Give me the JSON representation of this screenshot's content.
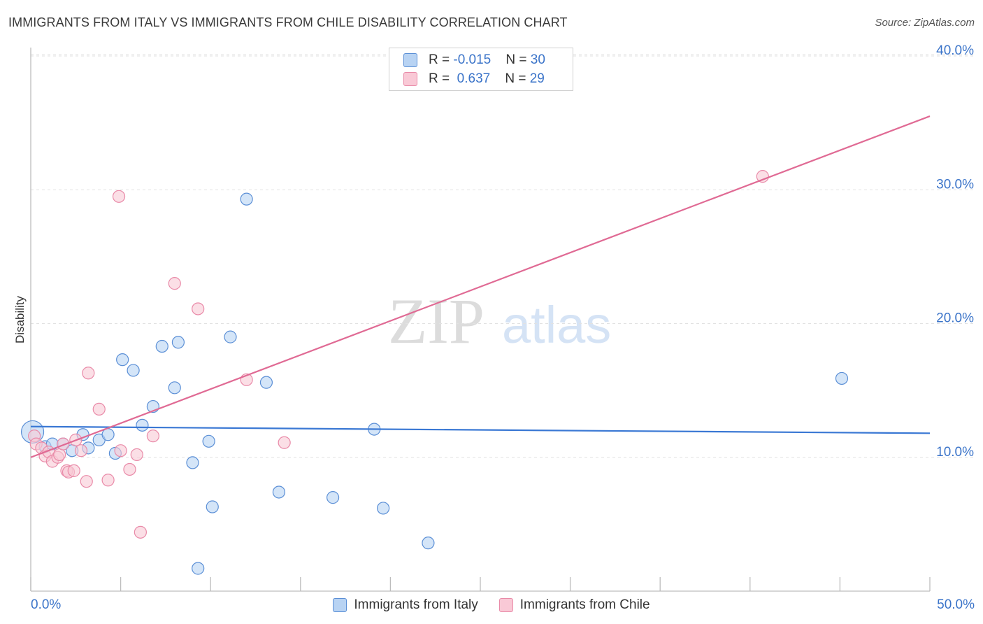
{
  "title": "IMMIGRANTS FROM ITALY VS IMMIGRANTS FROM CHILE DISABILITY CORRELATION CHART",
  "source": "Source: ZipAtlas.com",
  "watermark": {
    "zip": "ZIP",
    "atlas": "atlas"
  },
  "legend_stats": [
    {
      "r_label": "R = ",
      "r_value": "-0.015",
      "n_label": "N = ",
      "n_value": "30",
      "color": "#a8c8f0",
      "border": "#5b8fd6"
    },
    {
      "r_label": "R = ",
      "r_value": " 0.637",
      "n_label": "N = ",
      "n_value": "29",
      "color": "#f8c0d0",
      "border": "#e98aa8"
    }
  ],
  "legend_bottom": [
    {
      "label": "Immigrants from Italy",
      "color": "#b8d3f3",
      "border": "#5b8fd6"
    },
    {
      "label": "Immigrants from Chile",
      "color": "#f9c9d6",
      "border": "#e98aa8"
    }
  ],
  "chart_data": {
    "type": "scatter",
    "title": "IMMIGRANTS FROM ITALY VS IMMIGRANTS FROM CHILE DISABILITY CORRELATION CHART",
    "xlabel": "",
    "ylabel": "Disability",
    "xlim": [
      0,
      50
    ],
    "ylim": [
      0,
      40
    ],
    "x_tick_labels": [
      "0.0%",
      "50.0%"
    ],
    "y_ticks": [
      10,
      20,
      30,
      40
    ],
    "y_tick_labels": [
      "10.0%",
      "20.0%",
      "30.0%",
      "40.0%"
    ],
    "grid": true,
    "series": [
      {
        "name": "Immigrants from Italy",
        "color": "#5b8fd6",
        "fill": "#b8d3f3",
        "trend_color": "#3a78d4",
        "trend": {
          "x": [
            0,
            50
          ],
          "y": [
            12.3,
            11.8
          ]
        },
        "points": [
          {
            "x": 0.1,
            "y": 11.9,
            "big": true
          },
          {
            "x": 0.8,
            "y": 10.8
          },
          {
            "x": 1.2,
            "y": 11.0
          },
          {
            "x": 1.8,
            "y": 11.0
          },
          {
            "x": 2.3,
            "y": 10.5
          },
          {
            "x": 2.9,
            "y": 11.7
          },
          {
            "x": 3.2,
            "y": 10.7
          },
          {
            "x": 3.8,
            "y": 11.3
          },
          {
            "x": 4.3,
            "y": 11.7
          },
          {
            "x": 4.7,
            "y": 10.3
          },
          {
            "x": 5.1,
            "y": 17.3
          },
          {
            "x": 5.7,
            "y": 16.5
          },
          {
            "x": 6.2,
            "y": 12.4
          },
          {
            "x": 6.8,
            "y": 13.8
          },
          {
            "x": 7.3,
            "y": 18.3
          },
          {
            "x": 8.0,
            "y": 15.2
          },
          {
            "x": 8.2,
            "y": 18.6
          },
          {
            "x": 9.0,
            "y": 9.6
          },
          {
            "x": 9.3,
            "y": 1.7
          },
          {
            "x": 9.9,
            "y": 11.2
          },
          {
            "x": 10.1,
            "y": 6.3
          },
          {
            "x": 11.1,
            "y": 19.0
          },
          {
            "x": 12.0,
            "y": 29.3
          },
          {
            "x": 13.1,
            "y": 15.6
          },
          {
            "x": 13.8,
            "y": 7.4
          },
          {
            "x": 16.8,
            "y": 7.0
          },
          {
            "x": 19.1,
            "y": 12.1
          },
          {
            "x": 19.6,
            "y": 6.2
          },
          {
            "x": 22.1,
            "y": 3.6
          },
          {
            "x": 45.1,
            "y": 15.9
          }
        ]
      },
      {
        "name": "Immigrants from Chile",
        "color": "#e98aa8",
        "fill": "#f9c9d6",
        "trend_color": "#e06a94",
        "trend": {
          "x": [
            0,
            50
          ],
          "y": [
            10.0,
            35.5
          ]
        },
        "points": [
          {
            "x": 0.2,
            "y": 11.6
          },
          {
            "x": 0.3,
            "y": 11.0
          },
          {
            "x": 0.6,
            "y": 10.7
          },
          {
            "x": 0.8,
            "y": 10.1
          },
          {
            "x": 1.0,
            "y": 10.4
          },
          {
            "x": 1.2,
            "y": 9.7
          },
          {
            "x": 1.5,
            "y": 10.0
          },
          {
            "x": 1.6,
            "y": 10.2
          },
          {
            "x": 1.8,
            "y": 11.0
          },
          {
            "x": 2.0,
            "y": 9.0
          },
          {
            "x": 2.1,
            "y": 8.9
          },
          {
            "x": 2.4,
            "y": 9.0
          },
          {
            "x": 2.5,
            "y": 11.3
          },
          {
            "x": 2.8,
            "y": 10.5
          },
          {
            "x": 3.1,
            "y": 8.2
          },
          {
            "x": 3.2,
            "y": 16.3
          },
          {
            "x": 3.8,
            "y": 13.6
          },
          {
            "x": 4.3,
            "y": 8.3
          },
          {
            "x": 4.9,
            "y": 29.5
          },
          {
            "x": 5.0,
            "y": 10.5
          },
          {
            "x": 5.5,
            "y": 9.1
          },
          {
            "x": 5.9,
            "y": 10.2
          },
          {
            "x": 6.1,
            "y": 4.4
          },
          {
            "x": 6.8,
            "y": 11.6
          },
          {
            "x": 8.0,
            "y": 23.0
          },
          {
            "x": 9.3,
            "y": 21.1
          },
          {
            "x": 12.0,
            "y": 15.8
          },
          {
            "x": 14.1,
            "y": 11.1
          },
          {
            "x": 40.7,
            "y": 31.0
          }
        ]
      }
    ]
  }
}
